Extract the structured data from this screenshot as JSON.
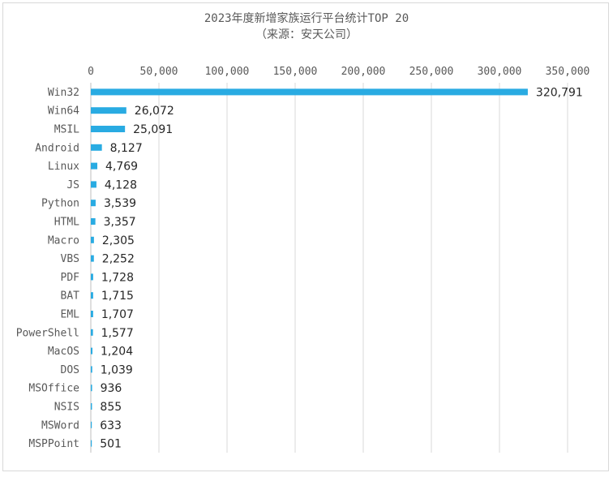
{
  "chart_data": {
    "type": "bar",
    "orientation": "horizontal",
    "title": "2023年度新增家族运行平台统计TOP 20",
    "subtitle": "（来源：安天公司）",
    "xlabel": "",
    "ylabel": "",
    "xlim": [
      0,
      350000
    ],
    "x_ticks": [
      0,
      50000,
      100000,
      150000,
      200000,
      250000,
      300000,
      350000
    ],
    "x_tick_labels": [
      "0",
      "50,000",
      "100,000",
      "150,000",
      "200,000",
      "250,000",
      "300,000",
      "350,000"
    ],
    "x_axis_position": "top",
    "grid": true,
    "legend": "none",
    "bar_color": "#29abe2",
    "categories": [
      "Win32",
      "Win64",
      "MSIL",
      "Android",
      "Linux",
      "JS",
      "Python",
      "HTML",
      "Macro",
      "VBS",
      "PDF",
      "BAT",
      "EML",
      "PowerShell",
      "MacOS",
      "DOS",
      "MSOffice",
      "NSIS",
      "MSWord",
      "MSPPoint"
    ],
    "values": [
      320791,
      26072,
      25091,
      8127,
      4769,
      4128,
      3539,
      3357,
      2305,
      2252,
      1728,
      1715,
      1707,
      1577,
      1204,
      1039,
      936,
      855,
      633,
      501
    ],
    "value_labels": [
      "320,791",
      "26,072",
      "25,091",
      "8,127",
      "4,769",
      "4,128",
      "3,539",
      "3,357",
      "2,305",
      "2,252",
      "1,728",
      "1,715",
      "1,707",
      "1,577",
      "1,204",
      "1,039",
      "936",
      "855",
      "633",
      "501"
    ]
  }
}
